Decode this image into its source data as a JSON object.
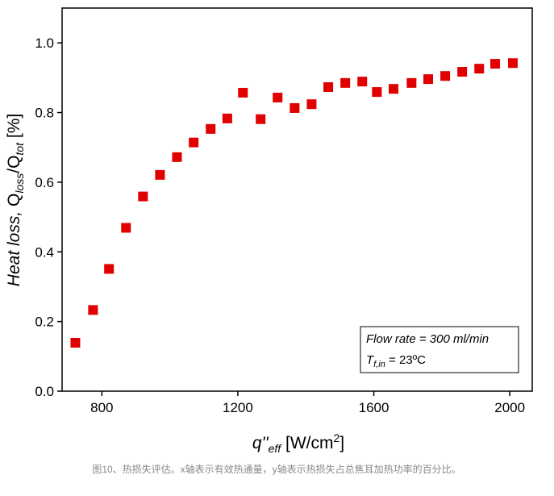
{
  "chart_data": {
    "type": "scatter",
    "ylabel_parts": [
      "Heat loss,",
      "Q",
      "loss",
      "/Q",
      "tot",
      "[%]"
    ],
    "xlabel_parts": [
      "q''",
      "eff",
      "[W/cm",
      "2",
      "]"
    ],
    "annotation": {
      "line1": "Flow rate = 300 ml/min",
      "line2_parts": [
        "T",
        "f,in",
        " = 23ºC"
      ]
    },
    "caption": "图10、热损失评估。x轴表示有效热通量，y轴表示热损失占总焦耳加热功率的百分比。",
    "color": "#e00000",
    "xlim": [
      683,
      2066
    ],
    "ylim": [
      0,
      1.1
    ],
    "xticks": [
      800,
      1200,
      1600,
      2000
    ],
    "yticks": [
      {
        "value": 0,
        "label": "0.0"
      },
      0.2,
      0.4,
      0.6,
      0.8,
      {
        "value": 1,
        "label": "1.0"
      }
    ],
    "x": [
      722,
      774,
      821,
      871,
      921,
      971,
      1021,
      1070,
      1120,
      1169,
      1215,
      1267,
      1317,
      1367,
      1417,
      1466,
      1516,
      1566,
      1609,
      1658,
      1711,
      1760,
      1810,
      1860,
      1910,
      1957,
      2009
    ],
    "values": [
      0.139,
      0.233,
      0.351,
      0.469,
      0.559,
      0.621,
      0.672,
      0.714,
      0.753,
      0.783,
      0.857,
      0.781,
      0.843,
      0.813,
      0.824,
      0.873,
      0.885,
      0.889,
      0.859,
      0.868,
      0.885,
      0.896,
      0.905,
      0.917,
      0.926,
      0.94,
      0.942
    ]
  }
}
